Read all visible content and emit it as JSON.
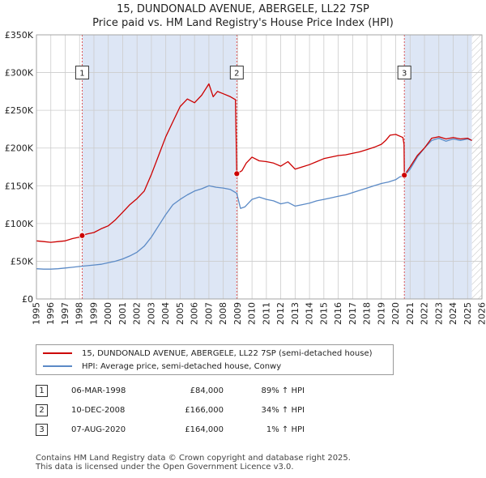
{
  "title": {
    "line1": "15, DUNDONALD AVENUE, ABERGELE, LL22 7SP",
    "line2": "Price paid vs. HM Land Registry's House Price Index (HPI)"
  },
  "colors": {
    "property": "#cc0000",
    "hpi": "#5b8ac6",
    "shade": "#dde6f5",
    "grid": "#cccccc",
    "marker_line": "#dd4444"
  },
  "chart_data": {
    "type": "line",
    "title": "15, DUNDONALD AVENUE, ABERGELE, LL22 7SP — Price paid vs. HM Land Registry's House Price Index (HPI)",
    "xlim": [
      1995,
      2026
    ],
    "ylim": [
      0,
      350000
    ],
    "x_ticks": [
      1995,
      1996,
      1997,
      1998,
      1999,
      2000,
      2001,
      2002,
      2003,
      2004,
      2005,
      2006,
      2007,
      2008,
      2009,
      2010,
      2011,
      2012,
      2013,
      2014,
      2015,
      2016,
      2017,
      2018,
      2019,
      2020,
      2021,
      2022,
      2023,
      2024,
      2025,
      2026
    ],
    "y_ticks": [
      {
        "value": 0,
        "label": "£0"
      },
      {
        "value": 50000,
        "label": "£50K"
      },
      {
        "value": 100000,
        "label": "£100K"
      },
      {
        "value": 150000,
        "label": "£150K"
      },
      {
        "value": 200000,
        "label": "£200K"
      },
      {
        "value": 250000,
        "label": "£250K"
      },
      {
        "value": 300000,
        "label": "£300K"
      },
      {
        "value": 350000,
        "label": "£350K"
      }
    ],
    "shaded_ranges": [
      [
        1998.18,
        2008.94
      ],
      [
        2020.6,
        2025.3
      ]
    ],
    "hatched_from": 2025.3,
    "series": [
      {
        "name": "15, DUNDONALD AVENUE, ABERGELE, LL22 7SP (semi-detached house)",
        "x": [
          1995.0,
          1995.5,
          1996.0,
          1996.5,
          1997.0,
          1997.5,
          1998.0,
          1998.18,
          1998.5,
          1999.0,
          1999.5,
          2000.0,
          2000.5,
          2001.0,
          2001.5,
          2002.0,
          2002.5,
          2003.0,
          2003.5,
          2004.0,
          2004.5,
          2005.0,
          2005.5,
          2006.0,
          2006.5,
          2007.0,
          2007.3,
          2007.6,
          2008.0,
          2008.5,
          2008.85,
          2008.94,
          2009.3,
          2009.6,
          2010.0,
          2010.5,
          2011.0,
          2011.5,
          2012.0,
          2012.5,
          2013.0,
          2013.5,
          2014.0,
          2014.5,
          2015.0,
          2015.5,
          2016.0,
          2016.5,
          2017.0,
          2017.5,
          2018.0,
          2018.5,
          2019.0,
          2019.3,
          2019.6,
          2020.0,
          2020.5,
          2020.58,
          2020.6,
          2021.0,
          2021.5,
          2022.0,
          2022.5,
          2023.0,
          2023.5,
          2024.0,
          2024.5,
          2025.0,
          2025.3
        ],
        "values": [
          77000,
          76000,
          75000,
          76000,
          77000,
          80000,
          82000,
          84000,
          86000,
          88000,
          93000,
          97000,
          105000,
          115000,
          125000,
          133000,
          143000,
          165000,
          190000,
          215000,
          235000,
          255000,
          265000,
          260000,
          270000,
          285000,
          268000,
          275000,
          272000,
          268000,
          264000,
          166000,
          170000,
          180000,
          188000,
          183000,
          182000,
          180000,
          176000,
          182000,
          172000,
          175000,
          178000,
          182000,
          186000,
          188000,
          190000,
          191000,
          193000,
          195000,
          198000,
          201000,
          205000,
          210000,
          217000,
          218000,
          214000,
          205000,
          164000,
          175000,
          190000,
          200000,
          213000,
          215000,
          212000,
          214000,
          212000,
          213000,
          210000
        ]
      },
      {
        "name": "HPI: Average price, semi-detached house, Conwy",
        "x": [
          1995.0,
          1995.5,
          1996.0,
          1996.5,
          1997.0,
          1997.5,
          1998.0,
          1998.5,
          1999.0,
          1999.5,
          2000.0,
          2000.5,
          2001.0,
          2001.5,
          2002.0,
          2002.5,
          2003.0,
          2003.5,
          2004.0,
          2004.5,
          2005.0,
          2005.5,
          2006.0,
          2006.5,
          2007.0,
          2007.5,
          2008.0,
          2008.5,
          2008.94,
          2009.2,
          2009.5,
          2010.0,
          2010.5,
          2011.0,
          2011.5,
          2012.0,
          2012.5,
          2013.0,
          2013.5,
          2014.0,
          2014.5,
          2015.0,
          2015.5,
          2016.0,
          2016.5,
          2017.0,
          2017.5,
          2018.0,
          2018.5,
          2019.0,
          2019.5,
          2020.0,
          2020.3,
          2020.6,
          2021.0,
          2021.5,
          2022.0,
          2022.5,
          2023.0,
          2023.5,
          2024.0,
          2024.5,
          2025.0,
          2025.3
        ],
        "values": [
          40000,
          39500,
          39500,
          40000,
          41000,
          42000,
          43000,
          44000,
          45000,
          46000,
          48000,
          50000,
          53000,
          57000,
          62000,
          70000,
          82000,
          97000,
          112000,
          125000,
          132000,
          138000,
          143000,
          146000,
          150000,
          148000,
          147000,
          145000,
          140000,
          120000,
          122000,
          132000,
          135000,
          132000,
          130000,
          126000,
          128000,
          123000,
          125000,
          127000,
          130000,
          132000,
          134000,
          136000,
          138000,
          141000,
          144000,
          147000,
          150000,
          153000,
          155000,
          158000,
          162000,
          163000,
          172000,
          188000,
          200000,
          210000,
          213000,
          209000,
          212000,
          210000,
          212000,
          210000
        ]
      }
    ],
    "sales": [
      {
        "num": "1",
        "x": 1998.18,
        "value": 84000
      },
      {
        "num": "2",
        "x": 2008.94,
        "value": 166000
      },
      {
        "num": "3",
        "x": 2020.6,
        "value": 164000
      }
    ],
    "marker_label_value": 300000
  },
  "legend": {
    "property": "15, DUNDONALD AVENUE, ABERGELE, LL22 7SP (semi-detached house)",
    "hpi": "HPI: Average price, semi-detached house, Conwy"
  },
  "sales_table": [
    {
      "num": "1",
      "date": "06-MAR-1998",
      "price": "£84,000",
      "hpi": "89% ↑ HPI"
    },
    {
      "num": "2",
      "date": "10-DEC-2008",
      "price": "£166,000",
      "hpi": "34% ↑ HPI"
    },
    {
      "num": "3",
      "date": "07-AUG-2020",
      "price": "£164,000",
      "hpi": "1% ↑ HPI"
    }
  ],
  "footer": {
    "line1": "Contains HM Land Registry data © Crown copyright and database right 2025.",
    "line2": "This data is licensed under the Open Government Licence v3.0."
  }
}
